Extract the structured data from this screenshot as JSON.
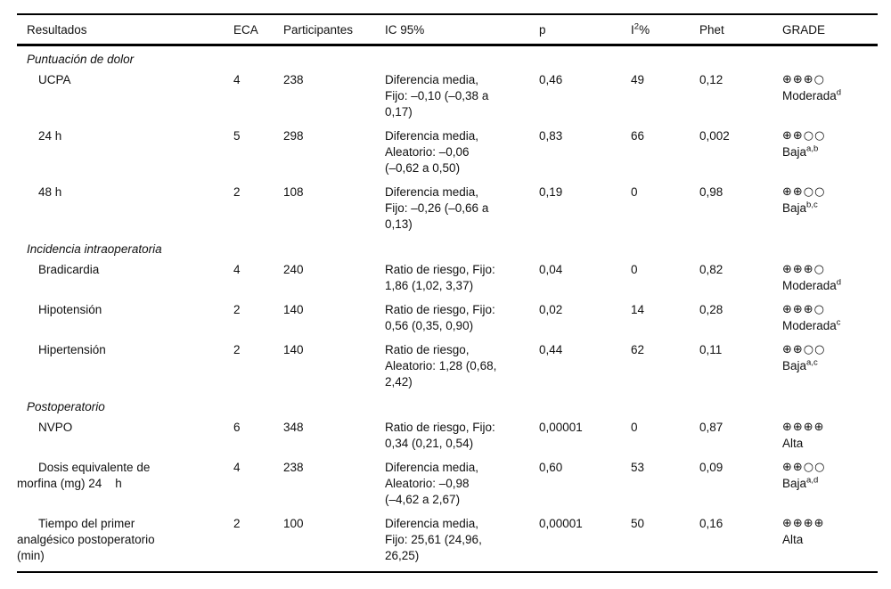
{
  "table": {
    "header": {
      "resultados": "Resultados",
      "eca": "ECA",
      "participantes": "Participantes",
      "ic95": "IC 95%",
      "p": "p",
      "i2_base": "I",
      "i2_sup": "2",
      "i2_suffix": "%",
      "phet": "Phet",
      "grade": "GRADE"
    },
    "sections": [
      {
        "title": "Puntuación de dolor",
        "rows": [
          {
            "outcome": "UCPA",
            "eca": "4",
            "participantes": "238",
            "ic": "Diferencia media,\nFijo: –0,10 (–0,38 a\n0,17)",
            "p": "0,46",
            "i2": "49",
            "phet": "0,12",
            "grade_symbols": "⊕⊕⊕○",
            "grade_label": "Moderada",
            "grade_sup": "d"
          },
          {
            "outcome": "24 h",
            "eca": "5",
            "participantes": "298",
            "ic": "Diferencia media,\nAleatorio: –0,06\n(–0,62 a 0,50)",
            "p": "0,83",
            "i2": "66",
            "phet": "0,002",
            "grade_symbols": "⊕⊕○○",
            "grade_label": "Baja",
            "grade_sup": "a,b"
          },
          {
            "outcome": "48 h",
            "eca": "2",
            "participantes": "108",
            "ic": "Diferencia media,\nFijo: –0,26 (–0,66 a\n0,13)",
            "p": "0,19",
            "i2": "0",
            "phet": "0,98",
            "grade_symbols": "⊕⊕○○",
            "grade_label": "Baja",
            "grade_sup": "b,c"
          }
        ]
      },
      {
        "title": "Incidencia intraoperatoria",
        "rows": [
          {
            "outcome": "Bradicardia",
            "eca": "4",
            "participantes": "240",
            "ic": "Ratio de riesgo, Fijo:\n1,86 (1,02, 3,37)",
            "p": "0,04",
            "i2": "0",
            "phet": "0,82",
            "grade_symbols": "⊕⊕⊕○",
            "grade_label": "Moderada",
            "grade_sup": "d"
          },
          {
            "outcome": "Hipotensión",
            "eca": "2",
            "participantes": "140",
            "ic": "Ratio de riesgo, Fijo:\n0,56 (0,35, 0,90)",
            "p": "0,02",
            "i2": "14",
            "phet": "0,28",
            "grade_symbols": "⊕⊕⊕○",
            "grade_label": "Moderada",
            "grade_sup": "c"
          },
          {
            "outcome": "Hipertensión",
            "eca": "2",
            "participantes": "140",
            "ic": "Ratio de riesgo,\nAleatorio: 1,28 (0,68,\n2,42)",
            "p": "0,44",
            "i2": "62",
            "phet": "0,11",
            "grade_symbols": "⊕⊕○○",
            "grade_label": "Baja",
            "grade_sup": "a,c"
          }
        ]
      },
      {
        "title": "Postoperatorio",
        "rows": [
          {
            "outcome": "NVPO",
            "eca": "6",
            "participantes": "348",
            "ic": "Ratio de riesgo, Fijo:\n0,34 (0,21, 0,54)",
            "p": "0,00001",
            "i2": "0",
            "phet": "0,87",
            "grade_symbols": "⊕⊕⊕⊕",
            "grade_label": "Alta",
            "grade_sup": ""
          },
          {
            "outcome": "Dosis equivalente de\nmorfina (mg) 24    h",
            "eca": "4",
            "participantes": "238",
            "ic": "Diferencia media,\nAleatorio: –0,98\n(–4,62 a 2,67)",
            "p": "0,60",
            "i2": "53",
            "phet": "0,09",
            "grade_symbols": "⊕⊕○○",
            "grade_label": "Baja",
            "grade_sup": "a,d"
          },
          {
            "outcome": "Tiempo del primer\nanalgésico postoperatorio\n(min)",
            "eca": "2",
            "participantes": "100",
            "ic": "Diferencia media,\nFijo: 25,61 (24,96,\n26,25)",
            "p": "0,00001",
            "i2": "50",
            "phet": "0,16",
            "grade_symbols": "⊕⊕⊕⊕",
            "grade_label": "Alta",
            "grade_sup": ""
          }
        ]
      }
    ]
  }
}
